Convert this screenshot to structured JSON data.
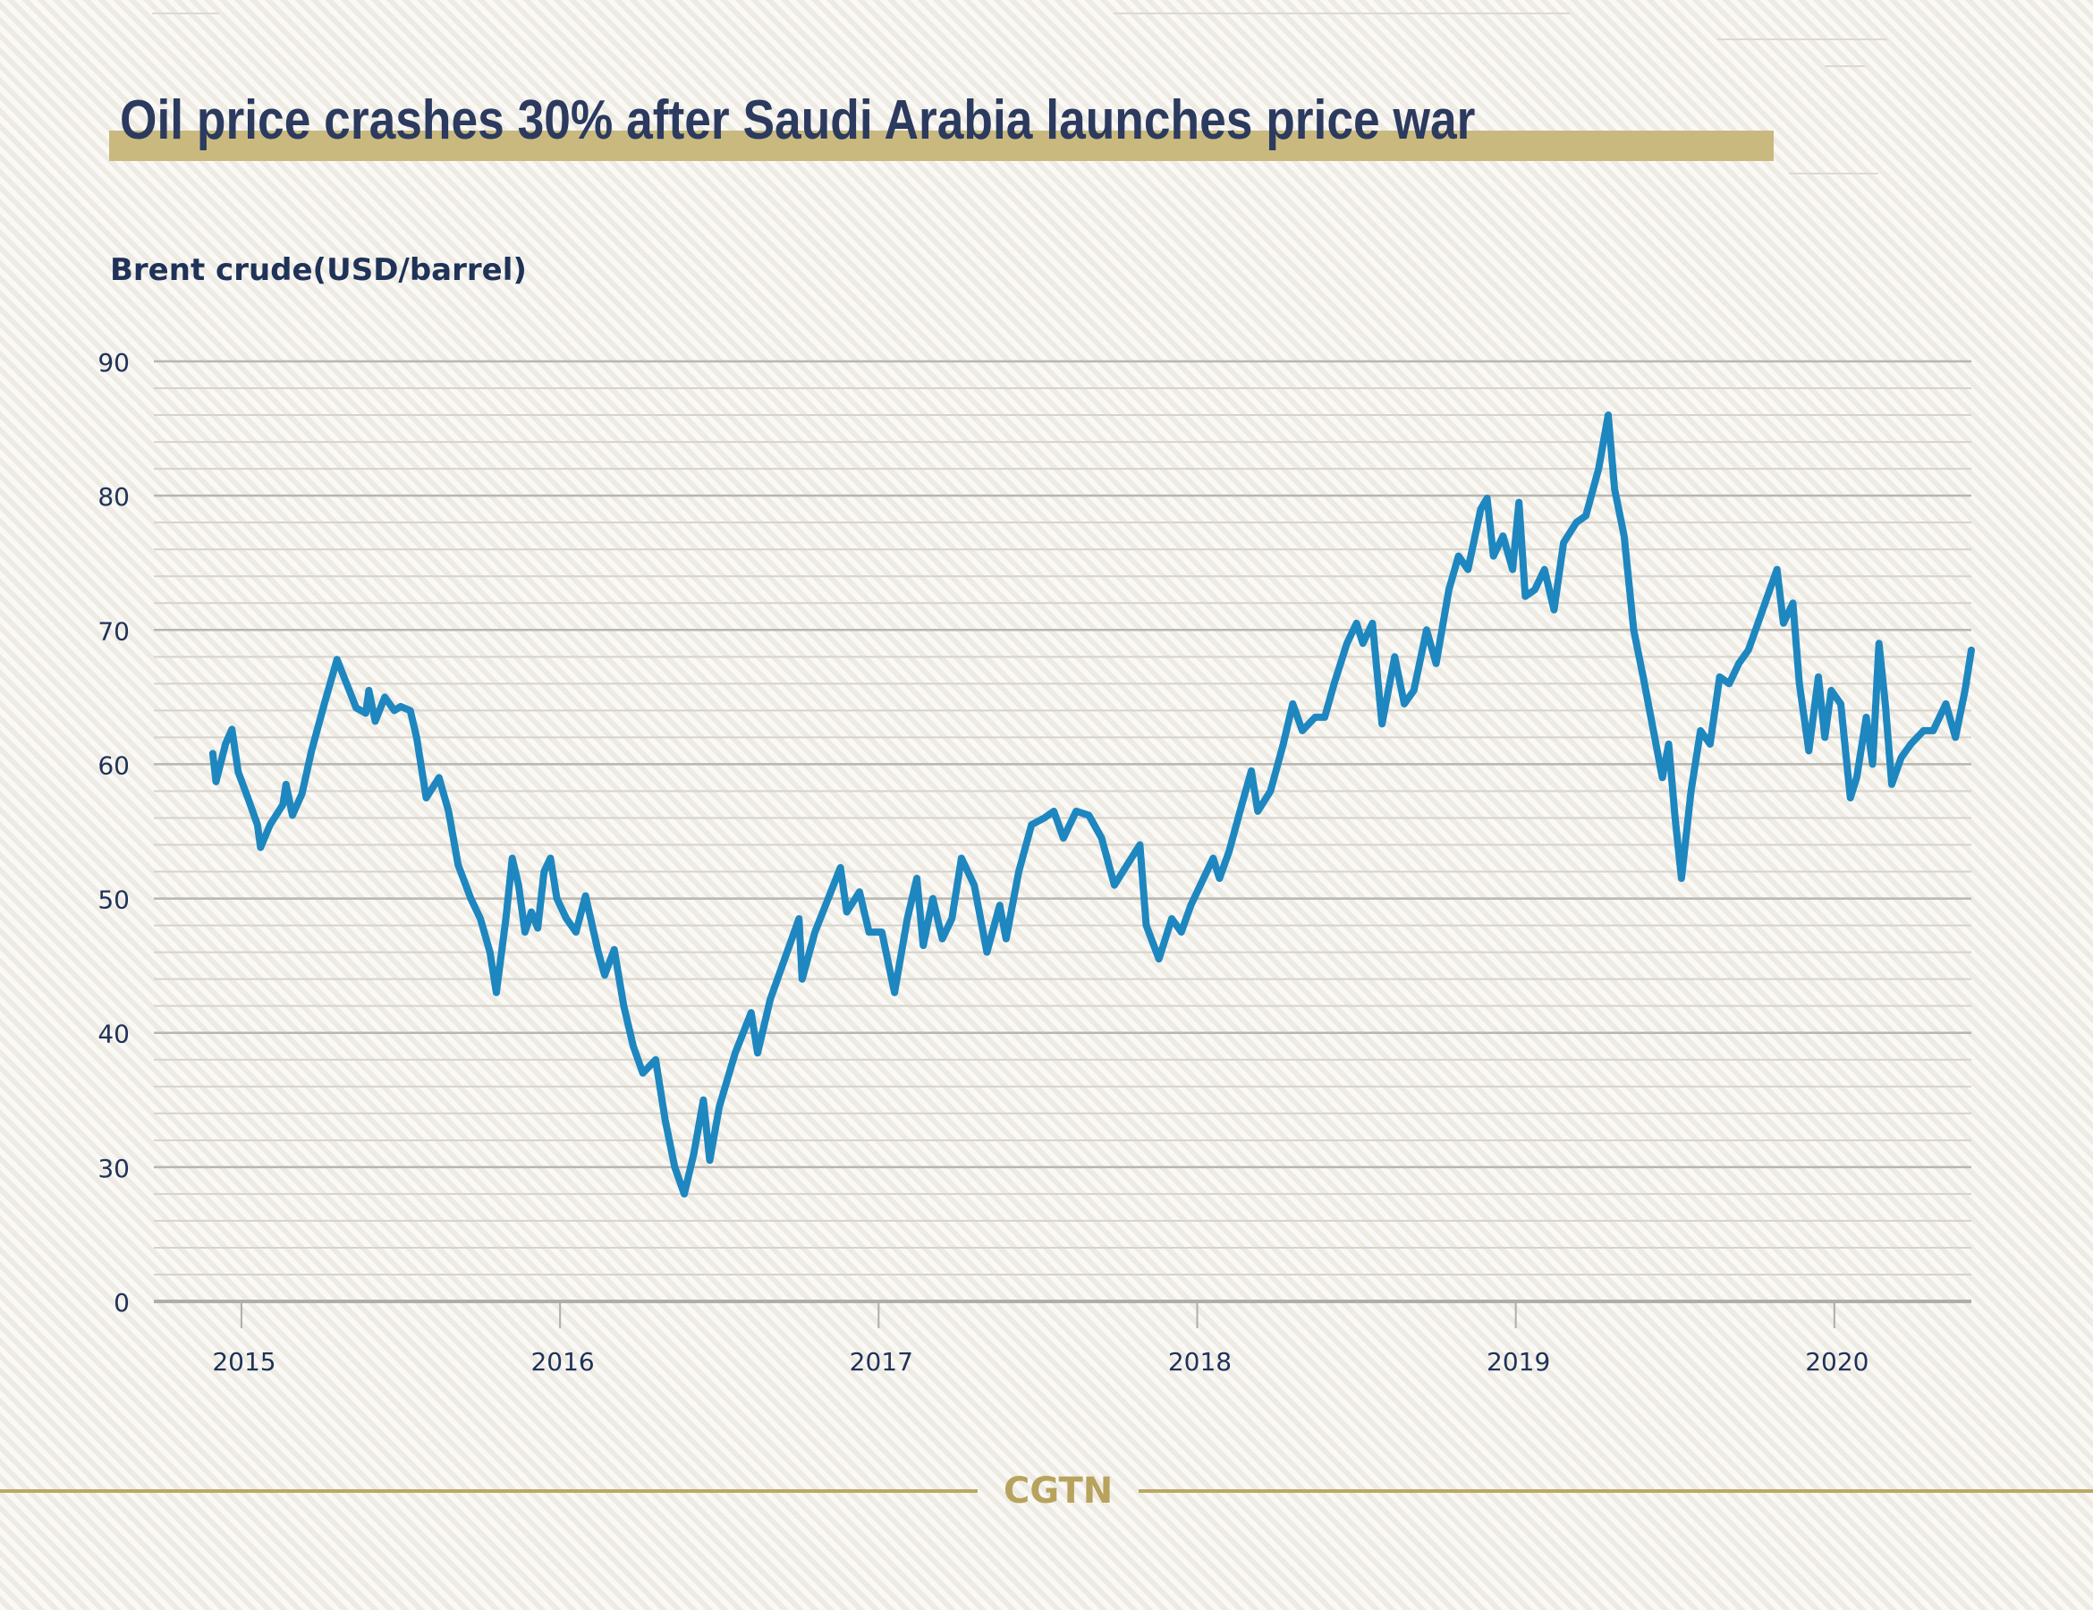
{
  "header": {
    "title": "Oil price crashes 30% after Saudi Arabia launches price war"
  },
  "brand": {
    "name": "CGTN",
    "color": "#b8a35e"
  },
  "colors": {
    "line": "#1e87c0",
    "title": "#2b3a5e",
    "title_bar": "#c9b97e",
    "grid_major": "#b8b6b1",
    "grid_minor": "#d6d3cc"
  },
  "chart_data": {
    "type": "line",
    "title": "Oil price crashes 30% after Saudi Arabia launches price war",
    "ylabel": "Brent crude(USD/barrel)",
    "xlabel": "",
    "x_ticks": [
      2015,
      2016,
      2017,
      2018,
      2019,
      2020
    ],
    "x_tick_labels": [
      "2015",
      "2016",
      "2017",
      "2018",
      "2019",
      "2020"
    ],
    "y_ticks": [
      20,
      30,
      40,
      50,
      60,
      70,
      80,
      90
    ],
    "y_tick_labels": [
      "0",
      "30",
      "40",
      "50",
      "60",
      "70",
      "80",
      "90"
    ],
    "y_axis_note": "axis break: baseline labeled 0, scale continuous from 30 to 90",
    "y_minor_step": 2,
    "xlim": [
      2014.72,
      2020.43
    ],
    "ylim": [
      20,
      90
    ],
    "grid": true,
    "legend": "none",
    "series": [
      {
        "name": "Brent crude",
        "points": [
          [
            2014.91,
            60.8
          ],
          [
            2014.92,
            58.7
          ],
          [
            2014.95,
            61.5
          ],
          [
            2014.97,
            62.6
          ],
          [
            2014.99,
            59.4
          ],
          [
            2015.02,
            57.5
          ],
          [
            2015.05,
            55.5
          ],
          [
            2015.06,
            53.8
          ],
          [
            2015.09,
            55.5
          ],
          [
            2015.13,
            57.0
          ],
          [
            2015.14,
            58.5
          ],
          [
            2015.16,
            56.2
          ],
          [
            2015.19,
            57.8
          ],
          [
            2015.22,
            61.0
          ],
          [
            2015.26,
            64.5
          ],
          [
            2015.3,
            67.8
          ],
          [
            2015.33,
            66.0
          ],
          [
            2015.36,
            64.2
          ],
          [
            2015.39,
            63.8
          ],
          [
            2015.4,
            65.5
          ],
          [
            2015.42,
            63.2
          ],
          [
            2015.45,
            65.0
          ],
          [
            2015.48,
            64.0
          ],
          [
            2015.5,
            64.3
          ],
          [
            2015.53,
            64.0
          ],
          [
            2015.55,
            62.0
          ],
          [
            2015.58,
            57.5
          ],
          [
            2015.62,
            59.0
          ],
          [
            2015.65,
            56.5
          ],
          [
            2015.68,
            52.5
          ],
          [
            2015.72,
            50.0
          ],
          [
            2015.75,
            48.5
          ],
          [
            2015.78,
            46.0
          ],
          [
            2015.8,
            43.0
          ],
          [
            2015.83,
            48.5
          ],
          [
            2015.85,
            53.0
          ],
          [
            2015.87,
            51.0
          ],
          [
            2015.89,
            47.5
          ],
          [
            2015.91,
            49.0
          ],
          [
            2015.93,
            47.8
          ],
          [
            2015.95,
            52.0
          ],
          [
            2015.97,
            53.0
          ],
          [
            2015.99,
            50.0
          ],
          [
            2016.02,
            48.5
          ],
          [
            2016.05,
            47.5
          ],
          [
            2016.08,
            50.2
          ],
          [
            2016.12,
            46.0
          ],
          [
            2016.14,
            44.3
          ],
          [
            2016.17,
            46.2
          ],
          [
            2016.2,
            42.0
          ],
          [
            2016.23,
            39.0
          ],
          [
            2016.26,
            37.0
          ],
          [
            2016.3,
            38.0
          ],
          [
            2016.33,
            33.5
          ],
          [
            2016.36,
            30.0
          ],
          [
            2016.39,
            28.0
          ],
          [
            2016.42,
            31.0
          ],
          [
            2016.45,
            35.0
          ],
          [
            2016.47,
            30.5
          ],
          [
            2016.5,
            34.5
          ],
          [
            2016.55,
            38.5
          ],
          [
            2016.6,
            41.5
          ],
          [
            2016.62,
            38.5
          ],
          [
            2016.66,
            42.5
          ],
          [
            2016.72,
            46.5
          ],
          [
            2016.75,
            48.5
          ],
          [
            2016.76,
            44.0
          ],
          [
            2016.8,
            47.5
          ],
          [
            2016.85,
            50.5
          ],
          [
            2016.88,
            52.3
          ],
          [
            2016.9,
            49.0
          ],
          [
            2016.94,
            50.5
          ],
          [
            2016.97,
            47.5
          ],
          [
            2017.01,
            47.5
          ],
          [
            2017.05,
            43.0
          ],
          [
            2017.09,
            48.5
          ],
          [
            2017.12,
            51.5
          ],
          [
            2017.14,
            46.5
          ],
          [
            2017.17,
            50.0
          ],
          [
            2017.2,
            47.0
          ],
          [
            2017.23,
            48.5
          ],
          [
            2017.26,
            53.0
          ],
          [
            2017.3,
            51.0
          ],
          [
            2017.34,
            46.0
          ],
          [
            2017.38,
            49.5
          ],
          [
            2017.4,
            47.0
          ],
          [
            2017.44,
            52.0
          ],
          [
            2017.48,
            55.5
          ],
          [
            2017.52,
            56.0
          ],
          [
            2017.55,
            56.5
          ],
          [
            2017.58,
            54.5
          ],
          [
            2017.62,
            56.5
          ],
          [
            2017.66,
            56.2
          ],
          [
            2017.7,
            54.5
          ],
          [
            2017.74,
            51.0
          ],
          [
            2017.78,
            52.5
          ],
          [
            2017.82,
            54.0
          ],
          [
            2017.84,
            48.0
          ],
          [
            2017.88,
            45.5
          ],
          [
            2017.92,
            48.5
          ],
          [
            2017.95,
            47.5
          ],
          [
            2017.98,
            49.5
          ],
          [
            2018.02,
            51.5
          ],
          [
            2018.05,
            53.0
          ],
          [
            2018.07,
            51.5
          ],
          [
            2018.1,
            53.5
          ],
          [
            2018.14,
            57.0
          ],
          [
            2018.17,
            59.5
          ],
          [
            2018.19,
            56.5
          ],
          [
            2018.23,
            58.0
          ],
          [
            2018.27,
            61.5
          ],
          [
            2018.3,
            64.5
          ],
          [
            2018.33,
            62.5
          ],
          [
            2018.37,
            63.5
          ],
          [
            2018.4,
            63.5
          ],
          [
            2018.43,
            66.0
          ],
          [
            2018.47,
            69.0
          ],
          [
            2018.5,
            70.5
          ],
          [
            2018.52,
            69.0
          ],
          [
            2018.55,
            70.5
          ],
          [
            2018.58,
            63.0
          ],
          [
            2018.62,
            68.0
          ],
          [
            2018.65,
            64.5
          ],
          [
            2018.68,
            65.5
          ],
          [
            2018.72,
            70.0
          ],
          [
            2018.75,
            67.5
          ],
          [
            2018.79,
            73.0
          ],
          [
            2018.82,
            75.5
          ],
          [
            2018.85,
            74.5
          ],
          [
            2018.89,
            79.0
          ],
          [
            2018.91,
            79.8
          ],
          [
            2018.93,
            75.5
          ],
          [
            2018.96,
            77.0
          ],
          [
            2018.99,
            74.5
          ],
          [
            2019.01,
            79.5
          ],
          [
            2019.03,
            72.5
          ],
          [
            2019.06,
            73.0
          ],
          [
            2019.09,
            74.5
          ],
          [
            2019.12,
            71.5
          ],
          [
            2019.15,
            76.5
          ],
          [
            2019.19,
            78.0
          ],
          [
            2019.22,
            78.5
          ],
          [
            2019.26,
            82.0
          ],
          [
            2019.29,
            86.0
          ],
          [
            2019.31,
            80.5
          ],
          [
            2019.34,
            77.0
          ],
          [
            2019.37,
            70.0
          ],
          [
            2019.4,
            66.5
          ],
          [
            2019.44,
            61.5
          ],
          [
            2019.46,
            59.0
          ],
          [
            2019.48,
            61.5
          ],
          [
            2019.5,
            56.0
          ],
          [
            2019.52,
            51.5
          ],
          [
            2019.55,
            58.0
          ],
          [
            2019.58,
            62.5
          ],
          [
            2019.61,
            61.5
          ],
          [
            2019.64,
            66.5
          ],
          [
            2019.67,
            66.0
          ],
          [
            2019.7,
            67.5
          ],
          [
            2019.73,
            68.5
          ],
          [
            2019.76,
            70.5
          ],
          [
            2019.79,
            72.5
          ],
          [
            2019.82,
            74.5
          ],
          [
            2019.84,
            70.5
          ],
          [
            2019.87,
            72.0
          ],
          [
            2019.89,
            66.0
          ],
          [
            2019.92,
            61.0
          ],
          [
            2019.95,
            66.5
          ],
          [
            2019.97,
            62.0
          ],
          [
            2019.99,
            65.5
          ],
          [
            2020.02,
            64.5
          ],
          [
            2020.05,
            57.5
          ],
          [
            2020.07,
            59.0
          ],
          [
            2020.1,
            63.5
          ],
          [
            2020.12,
            60.0
          ],
          [
            2020.14,
            69.0
          ],
          [
            2020.16,
            64.5
          ],
          [
            2020.18,
            58.5
          ],
          [
            2020.21,
            60.5
          ],
          [
            2020.24,
            61.5
          ],
          [
            2020.28,
            62.5
          ],
          [
            2020.31,
            62.5
          ],
          [
            2020.35,
            64.5
          ],
          [
            2020.38,
            62.0
          ],
          [
            2020.41,
            65.5
          ],
          [
            2020.43,
            68.5
          ]
        ]
      }
    ]
  }
}
